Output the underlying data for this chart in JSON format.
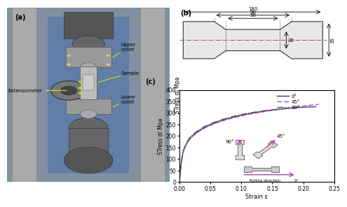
{
  "stress_strain_0": {
    "strain": [
      0,
      0.003,
      0.006,
      0.01,
      0.015,
      0.02,
      0.03,
      0.04,
      0.05,
      0.06,
      0.07,
      0.08,
      0.09,
      0.1,
      0.11,
      0.12,
      0.13,
      0.14,
      0.15,
      0.16,
      0.17,
      0.18,
      0.19,
      0.2,
      0.21,
      0.22
    ],
    "stress": [
      0,
      80,
      130,
      158,
      182,
      198,
      220,
      236,
      249,
      260,
      269,
      277,
      284,
      290,
      296,
      301,
      305,
      309,
      313,
      316,
      319,
      321,
      323,
      325,
      326,
      327
    ]
  },
  "stress_strain_45": {
    "strain": [
      0,
      0.003,
      0.006,
      0.01,
      0.015,
      0.02,
      0.03,
      0.04,
      0.05,
      0.06,
      0.07,
      0.08,
      0.09,
      0.1,
      0.11,
      0.12,
      0.13,
      0.14,
      0.15,
      0.16,
      0.17,
      0.18,
      0.19,
      0.2,
      0.21,
      0.22,
      0.225
    ],
    "stress": [
      0,
      78,
      128,
      155,
      179,
      195,
      217,
      233,
      246,
      257,
      266,
      274,
      281,
      287,
      293,
      298,
      303,
      307,
      311,
      315,
      318,
      322,
      326,
      330,
      333,
      336,
      338
    ]
  },
  "stress_strain_90": {
    "strain": [
      0,
      0.003,
      0.006,
      0.01,
      0.015,
      0.02,
      0.03,
      0.04,
      0.05,
      0.06,
      0.07,
      0.08,
      0.09,
      0.1,
      0.11,
      0.12,
      0.13,
      0.14,
      0.15,
      0.16,
      0.17,
      0.18,
      0.185
    ],
    "stress": [
      0,
      82,
      133,
      162,
      186,
      202,
      224,
      240,
      253,
      263,
      272,
      280,
      287,
      293,
      298,
      303,
      307,
      311,
      314,
      317,
      319,
      321,
      322
    ]
  },
  "color_0": "#3a3a8c",
  "color_45": "#bb44bb",
  "color_90": "#4a5a4a",
  "xlabel": "Strain ε",
  "ylabel": "STress σ/ Mpa",
  "xlim": [
    0,
    0.25
  ],
  "ylim": [
    0,
    400
  ],
  "yticks": [
    0,
    50,
    100,
    150,
    200,
    250,
    300,
    350,
    400
  ],
  "xticks": [
    0,
    0.05,
    0.1,
    0.15,
    0.2,
    0.25
  ],
  "legend_0": "0°",
  "legend_45": "45°",
  "legend_90": "90°",
  "panel_a_label": "(a)",
  "panel_b_label": "(b)",
  "panel_c_label": "(c)",
  "dim_180": "180",
  "dim_90": "90",
  "dim_50": "50",
  "dim_20": "20",
  "dim_35": "35",
  "photo_bg": "#8899aa",
  "photo_blue": "#4477aa",
  "arrow_color": "#aa44aa"
}
